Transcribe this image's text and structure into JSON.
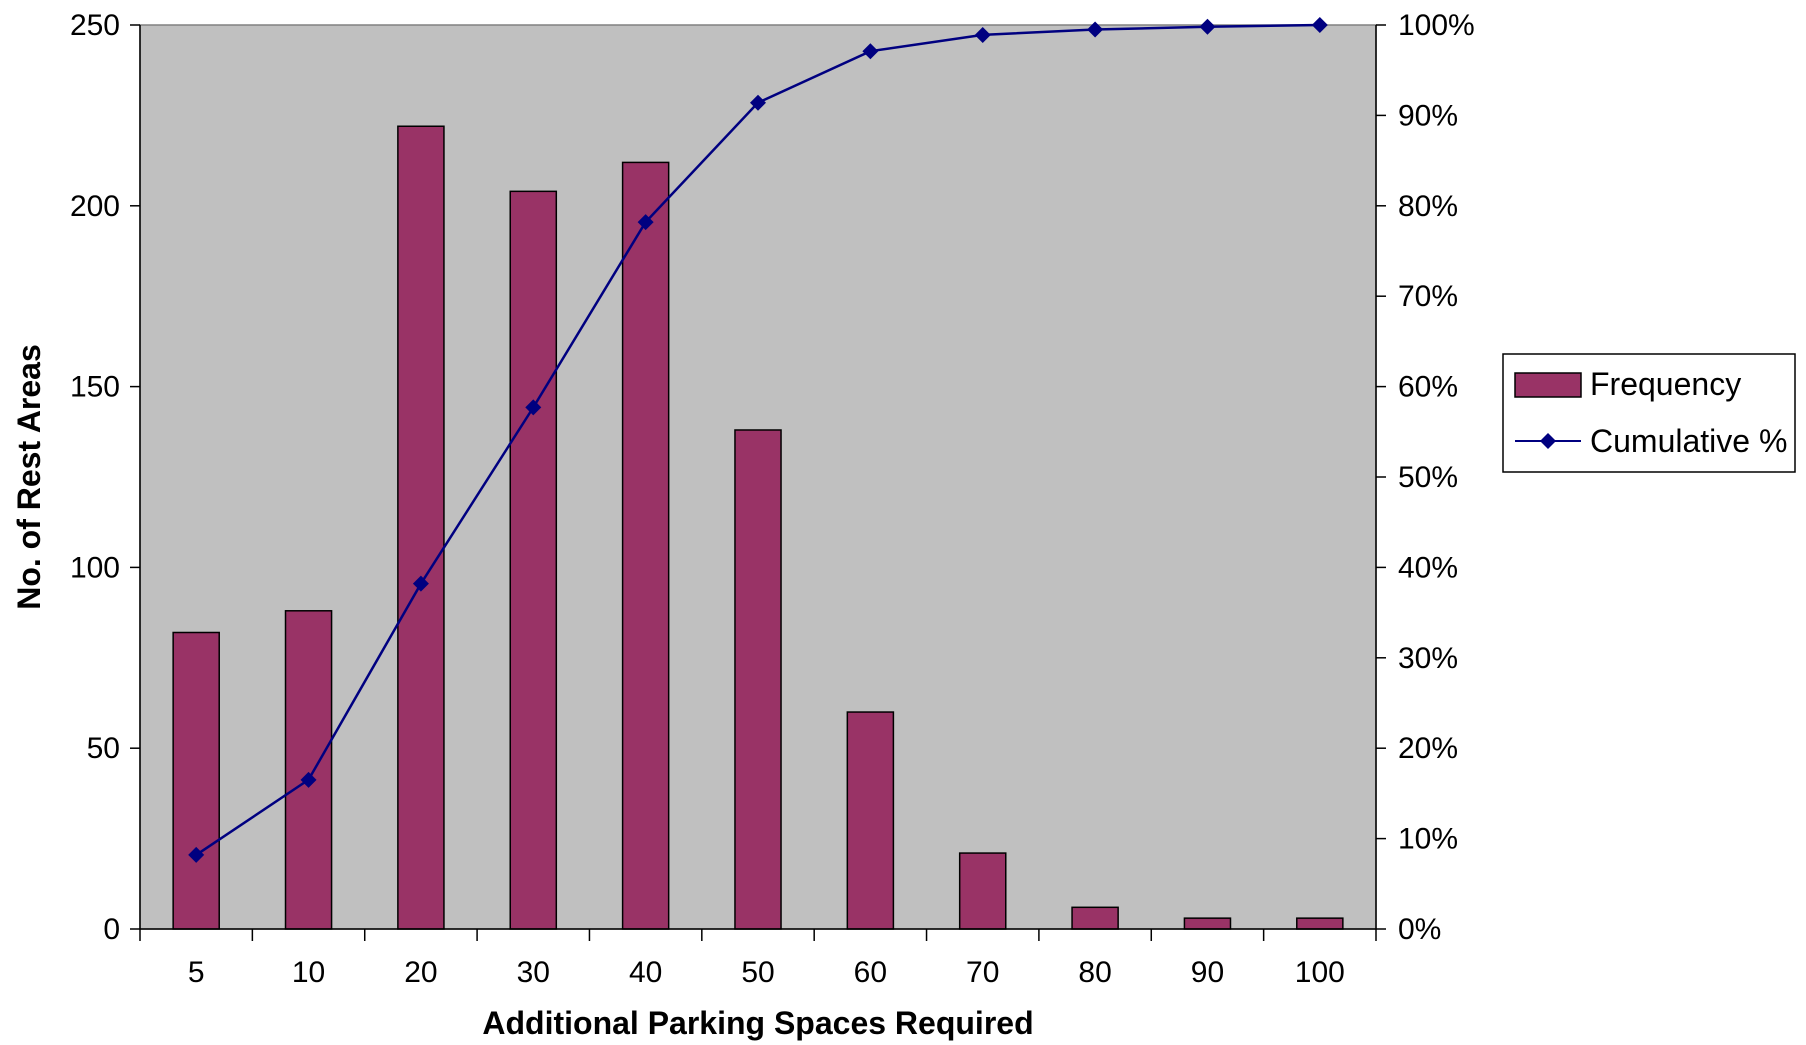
{
  "chart_data": {
    "type": "bar",
    "categories": [
      "5",
      "10",
      "20",
      "30",
      "40",
      "50",
      "60",
      "70",
      "80",
      "90",
      "100"
    ],
    "xlabel": "Additional Parking Spaces Required",
    "ylabel": "No. of Rest Areas",
    "ylim": [
      0,
      250
    ],
    "y_ticks": [
      0,
      50,
      100,
      150,
      200,
      250
    ],
    "y2lim": [
      0,
      100
    ],
    "y2_ticks": [
      "0%",
      "10%",
      "20%",
      "30%",
      "40%",
      "50%",
      "60%",
      "70%",
      "80%",
      "90%",
      "100%"
    ],
    "grid": false,
    "legend_position": "right",
    "plot_background": "#c0c0c0",
    "series": [
      {
        "name": "Frequency",
        "type": "bar",
        "axis": "left",
        "color": "#993366",
        "values": [
          82,
          88,
          222,
          204,
          212,
          138,
          60,
          21,
          6,
          3,
          3
        ]
      },
      {
        "name": "Cumulative %",
        "type": "line",
        "axis": "right",
        "marker": "diamond",
        "color": "#000080",
        "values": [
          8.2,
          16.5,
          38.2,
          57.7,
          78.2,
          91.4,
          97.1,
          98.9,
          99.5,
          99.8,
          100
        ]
      }
    ]
  }
}
